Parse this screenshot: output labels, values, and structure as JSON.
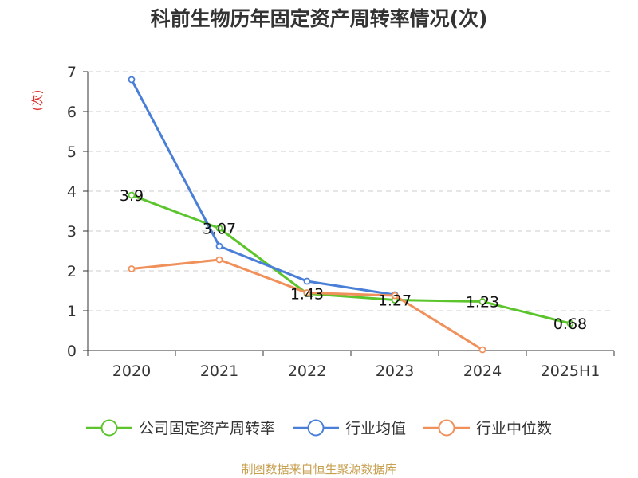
{
  "chart_data": {
    "type": "line",
    "title": "科前生物历年固定资产周转率情况(次)",
    "ylabel": "(次)",
    "xlabel": "",
    "categories": [
      "2020",
      "2021",
      "2022",
      "2023",
      "2024",
      "2025H1"
    ],
    "ylim": [
      0,
      7
    ],
    "yticks": [
      "0",
      "1",
      "2",
      "3",
      "4",
      "5",
      "6",
      "7"
    ],
    "grid": true,
    "legend_position": "bottom",
    "series": [
      {
        "name": "公司固定资产周转率",
        "color": "#5cc42c",
        "values": [
          3.9,
          3.07,
          1.43,
          1.27,
          1.23,
          0.68
        ],
        "labels": [
          "3.9",
          "3.07",
          "1.43",
          "1.27",
          "1.23",
          "0.68"
        ]
      },
      {
        "name": "行业均值",
        "color": "#4a7fd8",
        "values": [
          6.8,
          2.62,
          1.74,
          1.4,
          null,
          null
        ]
      },
      {
        "name": "行业中位数",
        "color": "#f0905a",
        "values": [
          2.05,
          2.28,
          1.45,
          1.38,
          0.02,
          null
        ]
      }
    ]
  },
  "source_note": "制图数据来自恒生聚源数据库"
}
